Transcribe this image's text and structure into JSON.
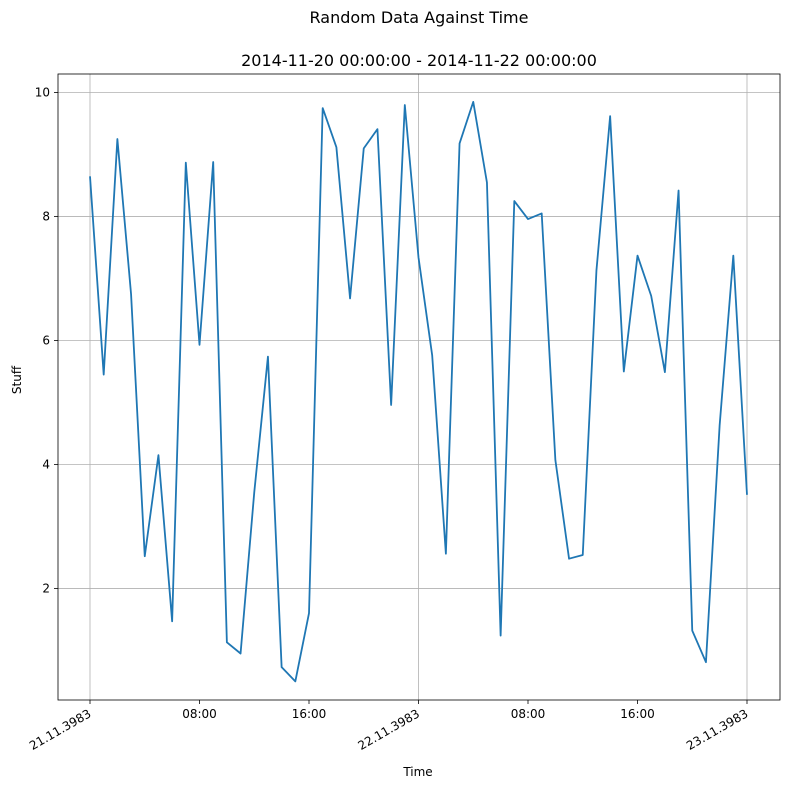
{
  "chart_data": {
    "type": "line",
    "suptitle": "Random Data Against Time",
    "title": "2014-11-20 00:00:00 - 2014-11-22 00:00:00",
    "xlabel": "Time",
    "ylabel": "Stuff",
    "x_start": "3983-11-21 00:00",
    "x_end": "3983-11-23 00:00",
    "x_step_hours": 1,
    "ylim": [
      0.2,
      10.3
    ],
    "y_ticks": [
      2,
      4,
      6,
      8,
      10
    ],
    "x_ticks": [
      {
        "hour": 0,
        "label": "21.11.3983",
        "rotated": true
      },
      {
        "hour": 8,
        "label": "08:00",
        "rotated": false
      },
      {
        "hour": 16,
        "label": "16:00",
        "rotated": false
      },
      {
        "hour": 24,
        "label": "22.11.3983",
        "rotated": true
      },
      {
        "hour": 32,
        "label": "08:00",
        "rotated": false
      },
      {
        "hour": 40,
        "label": "16:00",
        "rotated": false
      },
      {
        "hour": 48,
        "label": "23.11.3983",
        "rotated": true
      }
    ],
    "grid": true,
    "line_color": "#1f77b4",
    "series": [
      {
        "values": [
          8.65,
          5.45,
          9.25,
          6.75,
          2.52,
          4.15,
          1.47,
          8.87,
          5.93,
          8.88,
          1.13,
          0.95,
          3.55,
          5.74,
          0.73,
          0.5,
          1.6,
          9.75,
          9.12,
          6.68,
          9.1,
          9.41,
          4.96,
          9.8,
          7.34,
          5.76,
          2.56,
          9.18,
          9.85,
          8.55,
          1.24,
          8.25,
          7.96,
          8.05,
          4.07,
          2.48,
          2.54,
          7.13,
          9.62,
          5.5,
          7.37,
          6.72,
          5.49,
          8.42,
          1.32,
          0.81,
          4.63,
          7.37,
          3.51
        ]
      }
    ]
  }
}
